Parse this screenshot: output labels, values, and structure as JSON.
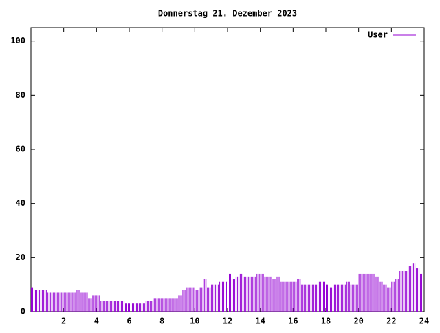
{
  "chart_data": {
    "type": "impulse",
    "title": "Donnerstag 21. Dezember 2023",
    "xlim": [
      0,
      24
    ],
    "xticks": [
      2,
      4,
      6,
      8,
      10,
      12,
      14,
      16,
      18,
      20,
      22,
      24
    ],
    "ylim": [
      0,
      105
    ],
    "yticks": [
      0,
      20,
      40,
      60,
      80,
      100
    ],
    "legend": "top-right",
    "x": [
      0,
      0.25,
      0.5,
      0.75,
      1,
      1.25,
      1.5,
      1.75,
      2,
      2.25,
      2.5,
      2.75,
      3,
      3.25,
      3.5,
      3.75,
      4,
      4.25,
      4.5,
      4.75,
      5,
      5.25,
      5.5,
      5.75,
      6,
      6.25,
      6.5,
      6.75,
      7,
      7.25,
      7.5,
      7.75,
      8,
      8.25,
      8.5,
      8.75,
      9,
      9.25,
      9.5,
      9.75,
      10,
      10.25,
      10.5,
      10.75,
      11,
      11.25,
      11.5,
      11.75,
      12,
      12.25,
      12.5,
      12.75,
      13,
      13.25,
      13.5,
      13.75,
      14,
      14.25,
      14.5,
      14.75,
      15,
      15.25,
      15.5,
      15.75,
      16,
      16.25,
      16.5,
      16.75,
      17,
      17.25,
      17.5,
      17.75,
      18,
      18.25,
      18.5,
      18.75,
      19,
      19.25,
      19.5,
      19.75,
      20,
      20.25,
      20.5,
      20.75,
      21,
      21.25,
      21.5,
      21.75,
      22,
      22.25,
      22.5,
      22.75,
      23,
      23.25,
      23.5,
      23.75
    ],
    "series": [
      {
        "name": "User",
        "color": "#9400d3",
        "values": [
          9,
          8,
          8,
          8,
          7,
          7,
          7,
          7,
          7,
          7,
          7,
          8,
          7,
          7,
          5,
          6,
          6,
          4,
          4,
          4,
          4,
          4,
          4,
          3,
          3,
          3,
          3,
          3,
          4,
          4,
          5,
          5,
          5,
          5,
          5,
          5,
          6,
          8,
          9,
          9,
          8,
          9,
          12,
          9,
          10,
          10,
          11,
          11,
          14,
          12,
          13,
          14,
          13,
          13,
          13,
          14,
          14,
          13,
          13,
          12,
          13,
          11,
          11,
          11,
          11,
          12,
          10,
          10,
          10,
          10,
          11,
          11,
          10,
          9,
          10,
          10,
          10,
          11,
          10,
          10,
          14,
          14,
          14,
          14,
          13,
          11,
          10,
          9,
          11,
          12,
          15,
          15,
          17,
          18,
          16,
          14
        ]
      }
    ]
  }
}
